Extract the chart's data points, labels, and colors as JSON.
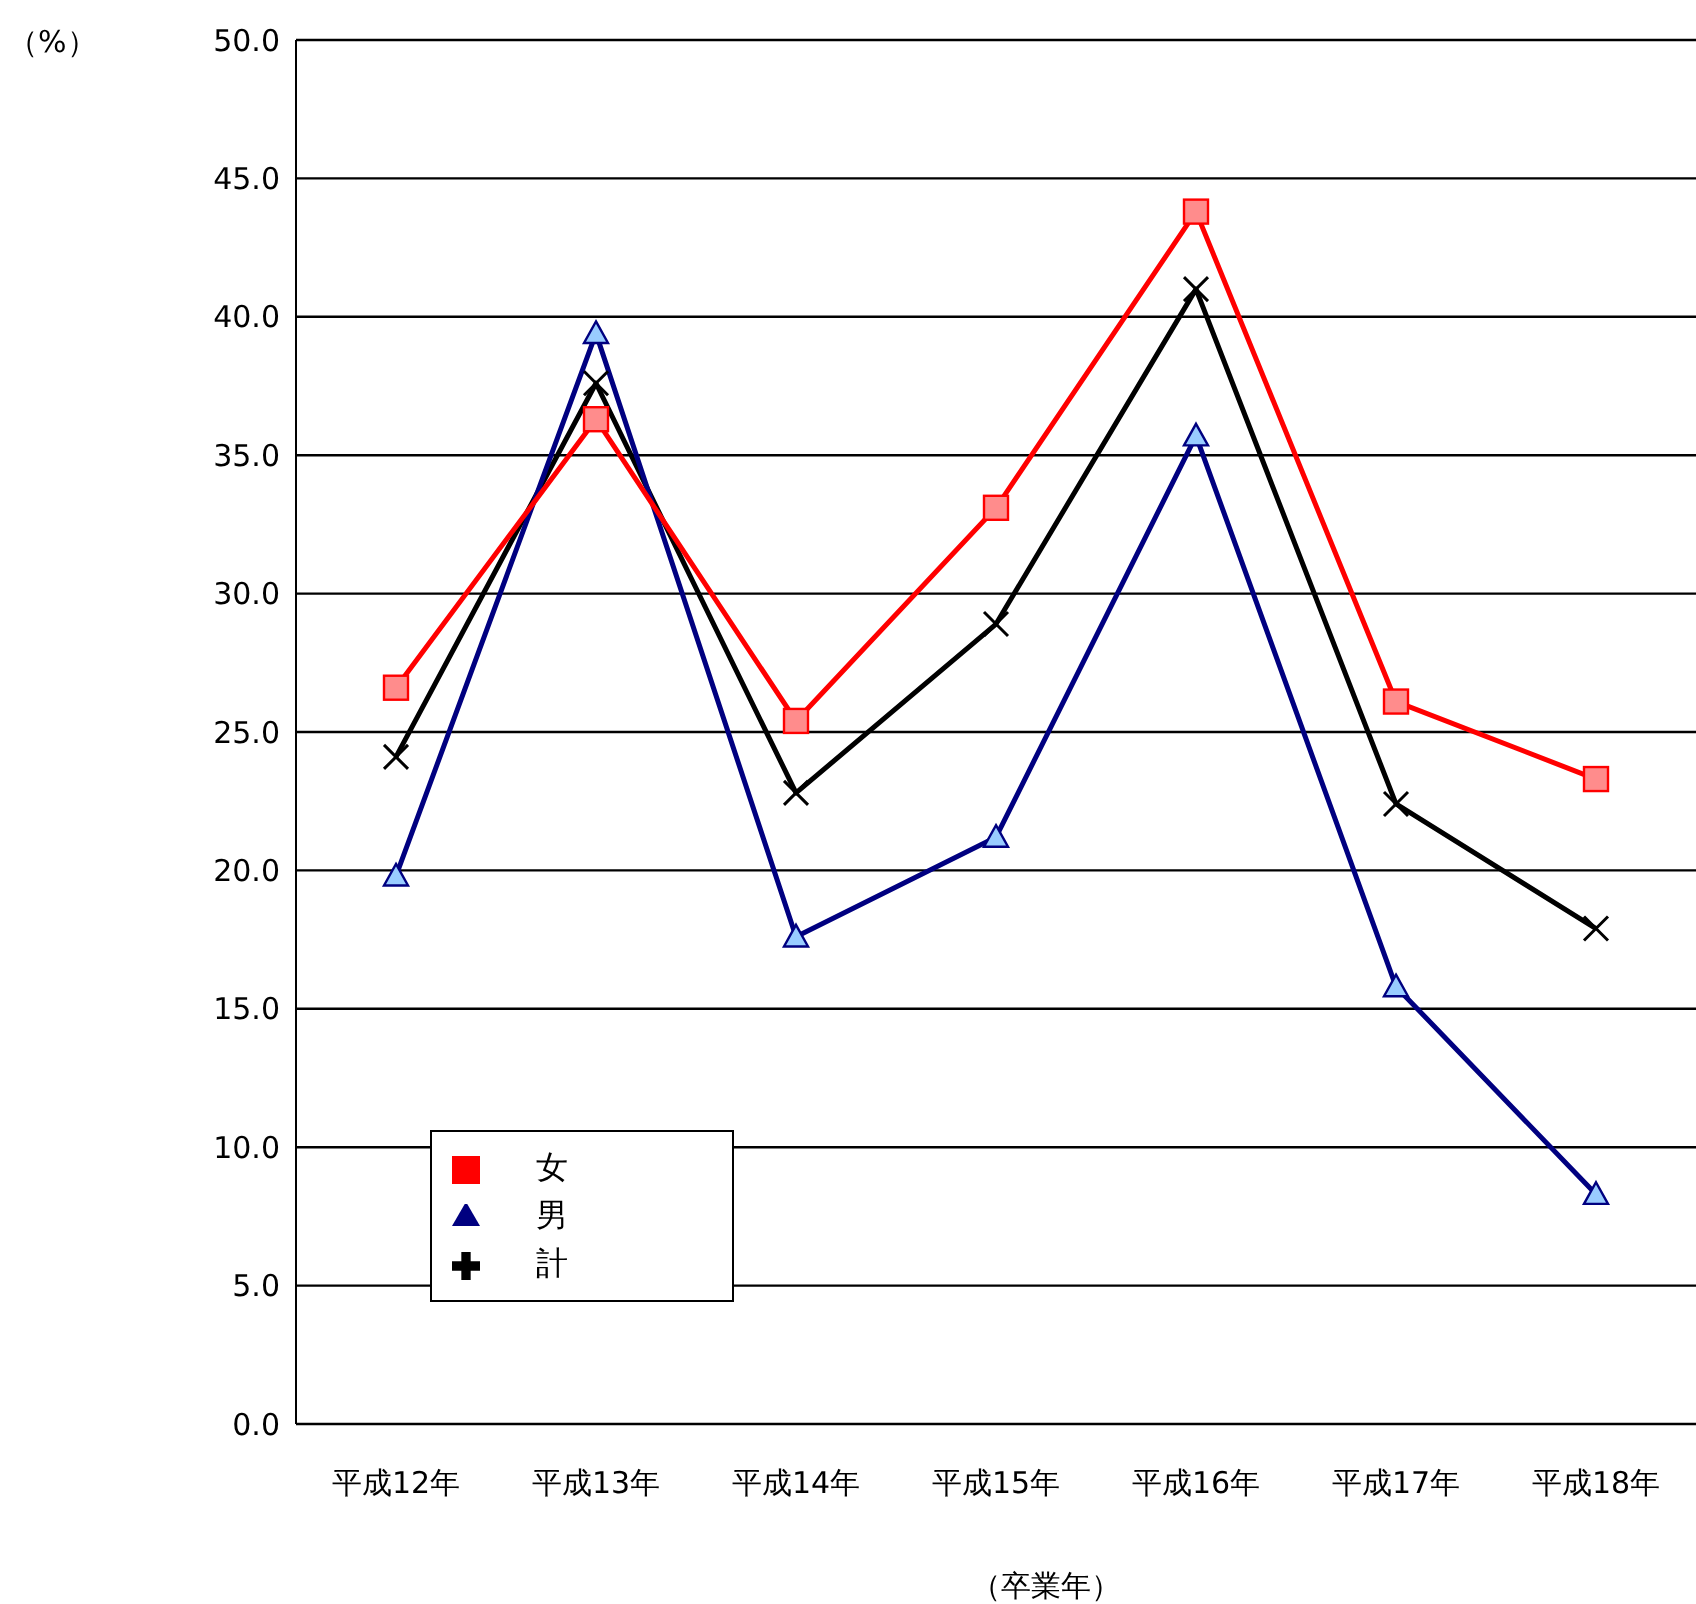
{
  "chart_data": {
    "type": "line",
    "categories": [
      "平成12年",
      "平成13年",
      "平成14年",
      "平成15年",
      "平成16年",
      "平成17年",
      "平成18年"
    ],
    "xlabel": "（卒業年）",
    "ylabel": "（%）",
    "ylim": [
      0,
      50
    ],
    "yticks": [
      {
        "value": 0,
        "label": "0.0"
      },
      {
        "value": 5,
        "label": "5.0"
      },
      {
        "value": 10,
        "label": "10.0"
      },
      {
        "value": 15,
        "label": "15.0"
      },
      {
        "value": 20,
        "label": "20.0"
      },
      {
        "value": 25,
        "label": "25.0"
      },
      {
        "value": 30,
        "label": "30.0"
      },
      {
        "value": 35,
        "label": "35.0"
      },
      {
        "value": 40,
        "label": "40.0"
      },
      {
        "value": 45,
        "label": "45.0"
      },
      {
        "value": 50,
        "label": "50.0"
      }
    ],
    "grid": "y",
    "legend": "bottom left",
    "line_style": "solid",
    "series": [
      {
        "name": "計",
        "color": "#000000",
        "marker": "cross",
        "values": [
          24.1,
          37.6,
          22.8,
          28.9,
          41.0,
          22.4,
          17.9
        ]
      },
      {
        "name": "男",
        "color": "#000080",
        "marker": "triangle",
        "values": [
          19.8,
          39.4,
          17.6,
          21.2,
          35.7,
          15.8,
          8.3
        ]
      },
      {
        "name": "女",
        "color": "#ff0000",
        "marker": "square",
        "values": [
          26.6,
          36.3,
          25.4,
          33.1,
          43.8,
          26.1,
          23.3
        ]
      }
    ]
  }
}
